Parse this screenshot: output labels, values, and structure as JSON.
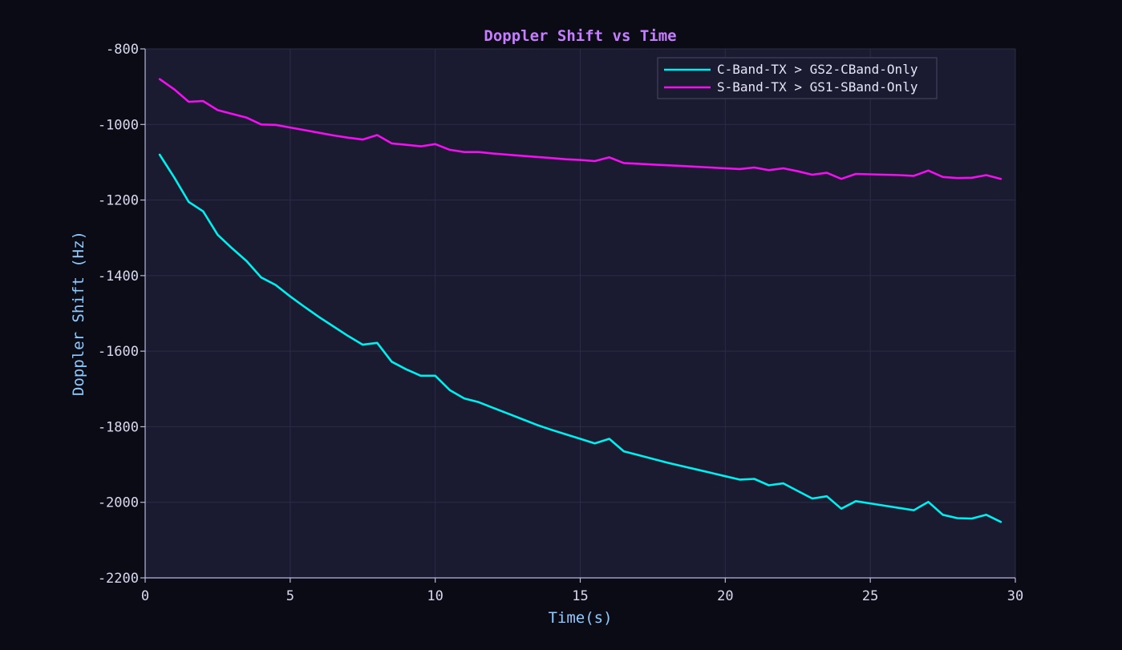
{
  "colors": {
    "page_bg": "#0b0b16",
    "plot_bg": "#1a1a30",
    "grid": "#2c2c48",
    "axis": "#b8b8dc",
    "tick_text": "#d8d8f0",
    "title": "#c77dff",
    "axis_label": "#8ecbff",
    "legend_bg": "#1a1a30",
    "legend_border": "#4a4a66",
    "legend_text": "#e6e6f6"
  },
  "chart_data": {
    "type": "line",
    "title": "Doppler Shift vs Time",
    "xlabel": "Time(s)",
    "ylabel": "Doppler Shift (Hz)",
    "xlim": [
      0,
      30
    ],
    "ylim": [
      -2200,
      -800
    ],
    "xticks": [
      0,
      5,
      10,
      15,
      20,
      25,
      30
    ],
    "yticks": [
      -2200,
      -2000,
      -1800,
      -1600,
      -1400,
      -1200,
      -1000,
      -800
    ],
    "grid": true,
    "legend_position": "top-right",
    "series": [
      {
        "name": "C-Band-TX > GS2-CBand-Only",
        "color": "#00f0f0",
        "x": [
          0.5,
          1.0,
          1.5,
          2.0,
          2.5,
          3.0,
          3.5,
          4.0,
          4.5,
          5.0,
          5.5,
          6.0,
          6.5,
          7.0,
          7.5,
          8.0,
          8.5,
          9.0,
          9.5,
          10.0,
          10.5,
          11.0,
          11.5,
          12.0,
          12.5,
          13.0,
          13.5,
          14.0,
          14.5,
          15.0,
          15.5,
          16.0,
          16.5,
          17.0,
          17.5,
          18.0,
          18.5,
          19.0,
          19.5,
          20.0,
          20.5,
          21.0,
          21.5,
          22.0,
          22.5,
          23.0,
          23.5,
          24.0,
          24.5,
          25.0,
          25.5,
          26.0,
          26.5,
          27.0,
          27.5,
          28.0,
          28.5,
          29.0,
          29.5
        ],
        "y": [
          -1080,
          -1140,
          -1205,
          -1230,
          -1292,
          -1328,
          -1362,
          -1405,
          -1425,
          -1455,
          -1483,
          -1510,
          -1535,
          -1560,
          -1583,
          -1578,
          -1628,
          -1648,
          -1665,
          -1665,
          -1703,
          -1725,
          -1735,
          -1750,
          -1765,
          -1780,
          -1795,
          -1808,
          -1820,
          -1832,
          -1844,
          -1832,
          -1865,
          -1875,
          -1885,
          -1895,
          -1904,
          -1913,
          -1922,
          -1931,
          -1940,
          -1938,
          -1955,
          -1950,
          -1970,
          -1990,
          -1984,
          -2017,
          -1997,
          -2003,
          -2009,
          -2015,
          -2021,
          -1999,
          -2033,
          -2042,
          -2043,
          -2033,
          -2052
        ]
      },
      {
        "name": "S-Band-TX > GS1-SBand-Only",
        "color": "#f010f0",
        "x": [
          0.5,
          1.0,
          1.5,
          2.0,
          2.5,
          3.0,
          3.5,
          4.0,
          4.5,
          5.0,
          5.5,
          6.0,
          6.5,
          7.0,
          7.5,
          8.0,
          8.5,
          9.0,
          9.5,
          10.0,
          10.5,
          11.0,
          11.5,
          12.0,
          12.5,
          13.0,
          13.5,
          14.0,
          14.5,
          15.0,
          15.5,
          16.0,
          16.5,
          17.0,
          17.5,
          18.0,
          18.5,
          19.0,
          19.5,
          20.0,
          20.5,
          21.0,
          21.5,
          22.0,
          22.5,
          23.0,
          23.5,
          24.0,
          24.5,
          25.0,
          25.5,
          26.0,
          26.5,
          27.0,
          27.5,
          28.0,
          28.5,
          29.0,
          29.5
        ],
        "y": [
          -880,
          -907,
          -940,
          -938,
          -962,
          -972,
          -982,
          -1000,
          -1001,
          -1008,
          -1015,
          -1022,
          -1029,
          -1035,
          -1040,
          -1028,
          -1050,
          -1054,
          -1058,
          -1052,
          -1067,
          -1073,
          -1073,
          -1077,
          -1080,
          -1083,
          -1086,
          -1089,
          -1092,
          -1094,
          -1097,
          -1087,
          -1102,
          -1104,
          -1106,
          -1108,
          -1110,
          -1112,
          -1114,
          -1116,
          -1118,
          -1114,
          -1121,
          -1116,
          -1124,
          -1133,
          -1128,
          -1144,
          -1131,
          -1132,
          -1133,
          -1134,
          -1136,
          -1122,
          -1139,
          -1142,
          -1141,
          -1134,
          -1144
        ]
      }
    ]
  }
}
